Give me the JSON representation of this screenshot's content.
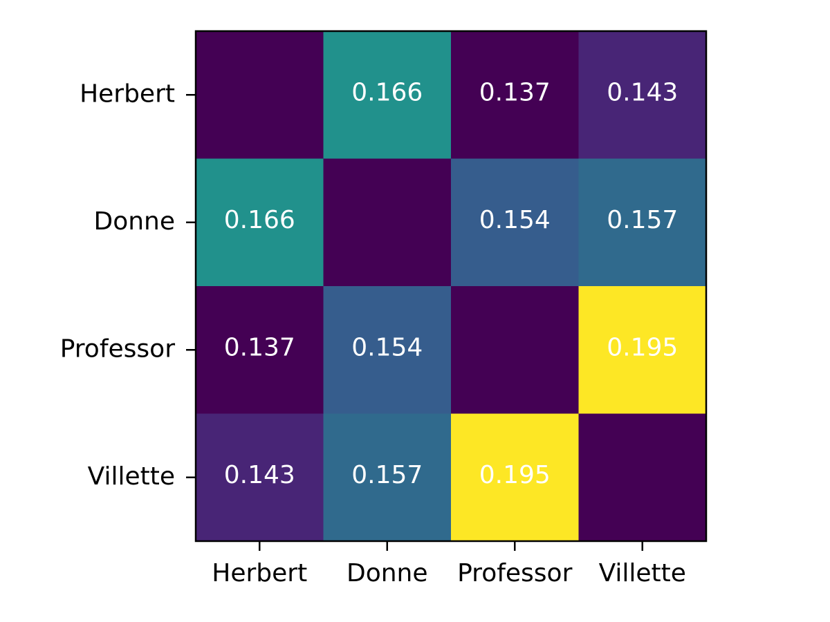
{
  "chart_data": {
    "type": "heatmap",
    "title": "",
    "xlabel": "",
    "ylabel": "",
    "rows": [
      "Herbert",
      "Donne",
      "Professor",
      "Villette"
    ],
    "columns": [
      "Herbert",
      "Donne",
      "Professor",
      "Villette"
    ],
    "values": [
      [
        null,
        0.166,
        0.137,
        0.143
      ],
      [
        0.166,
        null,
        0.154,
        0.157
      ],
      [
        0.137,
        0.154,
        null,
        0.195
      ],
      [
        0.143,
        0.157,
        0.195,
        null
      ]
    ],
    "cell_labels": [
      [
        "",
        "0.166",
        "0.137",
        "0.143"
      ],
      [
        "0.166",
        "",
        "0.154",
        "0.157"
      ],
      [
        "0.137",
        "0.154",
        "",
        "0.195"
      ],
      [
        "0.143",
        "0.157",
        "0.195",
        ""
      ]
    ],
    "colormap": "viridis",
    "empty_cell_color": "#440154",
    "color_range": [
      0.137,
      0.195
    ],
    "colorbar": false,
    "grid": false,
    "legend": "none"
  }
}
